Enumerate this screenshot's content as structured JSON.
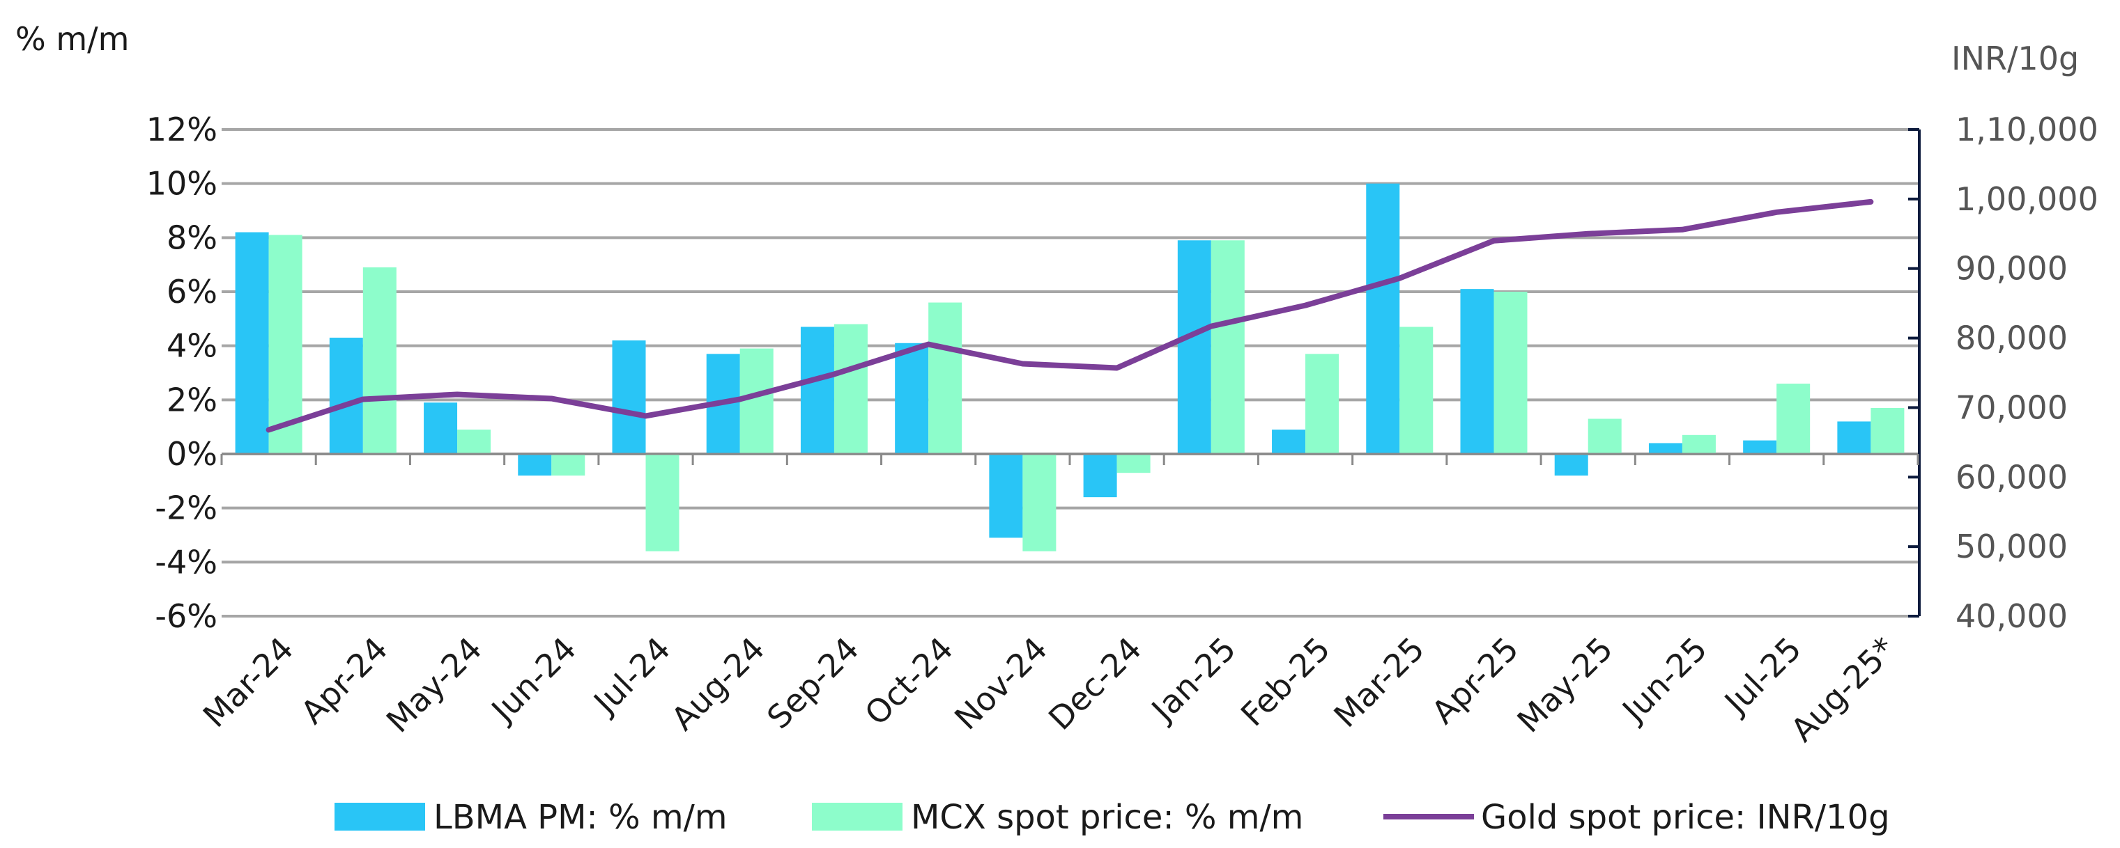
{
  "chart_data": {
    "type": "bar",
    "left_axis_unit": "% m/m",
    "right_axis_unit": "INR/10g",
    "categories": [
      "Mar-24",
      "Apr-24",
      "May-24",
      "Jun-24",
      "Jul-24",
      "Aug-24",
      "Sep-24",
      "Oct-24",
      "Nov-24",
      "Dec-24",
      "Jan-25",
      "Feb-25",
      "Mar-25",
      "Apr-25",
      "May-25",
      "Jun-25",
      "Jul-25",
      "Aug-25*"
    ],
    "ylim": [
      -6,
      12
    ],
    "y_ticks": [
      -6,
      -4,
      -2,
      0,
      2,
      4,
      6,
      8,
      10,
      12
    ],
    "y_tick_labels": [
      "-6%",
      "-4%",
      "-2%",
      "0%",
      "2%",
      "4%",
      "6%",
      "8%",
      "10%",
      "12%"
    ],
    "y2lim": [
      40000,
      110000
    ],
    "y2_ticks": [
      40000,
      50000,
      60000,
      70000,
      80000,
      90000,
      100000,
      110000
    ],
    "y2_tick_labels": [
      "40,000",
      "50,000",
      "60,000",
      "70,000",
      "80,000",
      "90,000",
      "1,00,000",
      "1,10,000"
    ],
    "grid": true,
    "legend_position": "bottom",
    "series": [
      {
        "name": "LBMA PM: % m/m",
        "type": "bar",
        "axis": "left",
        "color": "#29C5F6",
        "values": [
          8.2,
          4.3,
          1.9,
          -0.8,
          4.2,
          3.7,
          4.7,
          4.1,
          -3.1,
          -1.6,
          7.9,
          0.9,
          10.0,
          6.1,
          -0.8,
          0.4,
          0.5,
          1.2
        ]
      },
      {
        "name": "MCX spot price: % m/m",
        "type": "bar",
        "axis": "left",
        "color": "#8DFDCB",
        "values": [
          8.1,
          6.9,
          0.9,
          -0.8,
          -3.6,
          3.9,
          4.8,
          5.6,
          -3.6,
          -0.7,
          7.9,
          3.7,
          4.7,
          6.0,
          1.3,
          0.7,
          2.6,
          1.7
        ]
      },
      {
        "name": "Gold spot price: INR/10g",
        "type": "line",
        "axis": "right",
        "color": "#7B3F98",
        "values": [
          66800,
          71200,
          71900,
          71300,
          68800,
          71200,
          74800,
          79100,
          76300,
          75700,
          81700,
          84700,
          88600,
          94000,
          95000,
          95600,
          98100,
          99600
        ]
      }
    ]
  }
}
